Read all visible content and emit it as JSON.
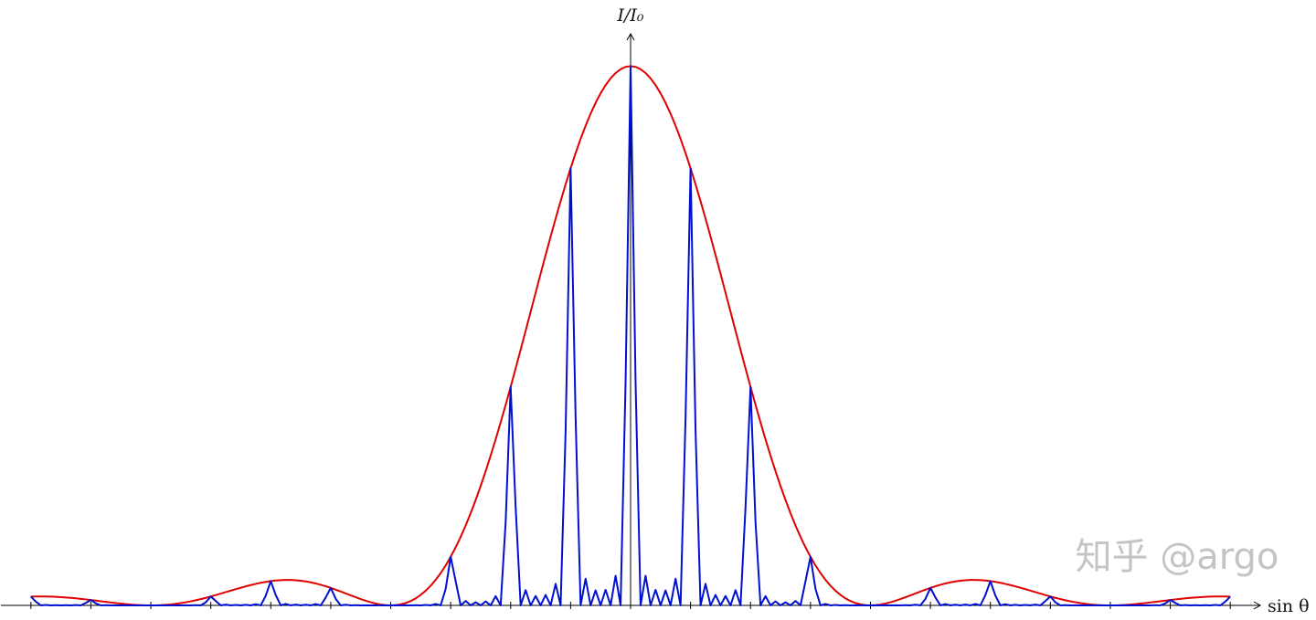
{
  "chart_data": {
    "type": "line",
    "y_label": "I/I₀",
    "x_label": "sin θ",
    "watermark": "知乎 @argo",
    "x": [
      -120,
      -119,
      -118,
      -117,
      -116,
      -115,
      -114,
      -113,
      -112,
      -111,
      -110,
      -109,
      -108,
      -107,
      -106,
      -105,
      -104,
      -103,
      -102,
      -101,
      -100,
      -99,
      -98,
      -97,
      -96,
      -95,
      -94,
      -93,
      -92,
      -91,
      -90,
      -89,
      -88,
      -87,
      -86,
      -85,
      -84,
      -83,
      -82,
      -81,
      -80,
      -79,
      -78,
      -77,
      -76,
      -75,
      -74,
      -73,
      -72,
      -71,
      -70,
      -69,
      -68,
      -67,
      -66,
      -65,
      -64,
      -63,
      -62,
      -61,
      -60,
      -59,
      -58,
      -57,
      -56,
      -55,
      -54,
      -53,
      -52,
      -51,
      -50,
      -49,
      -48,
      -47,
      -46,
      -45,
      -44,
      -43,
      -42,
      -41,
      -40,
      -39,
      -38,
      -37,
      -36,
      -35,
      -34,
      -33,
      -32,
      -31,
      -30,
      -29,
      -28,
      -27,
      -26,
      -25,
      -24,
      -23,
      -22,
      -21,
      -20,
      -19,
      -18,
      -17,
      -16,
      -15,
      -14,
      -13,
      -12,
      -11,
      -10,
      -9,
      -8,
      -7,
      -6,
      -5,
      -4,
      -3,
      -2,
      -1,
      0,
      1,
      2,
      3,
      4,
      5,
      6,
      7,
      8,
      9,
      10,
      11,
      12,
      13,
      14,
      15,
      16,
      17,
      18,
      19,
      20,
      21,
      22,
      23,
      24,
      25,
      26,
      27,
      28,
      29,
      30,
      31,
      32,
      33,
      34,
      35,
      36,
      37,
      38,
      39,
      40,
      41,
      42,
      43,
      44,
      45,
      46,
      47,
      48,
      49,
      50,
      51,
      52,
      53,
      54,
      55,
      56,
      57,
      58,
      59,
      60,
      61,
      62,
      63,
      64,
      65,
      66,
      67,
      68,
      69,
      70,
      71,
      72,
      73,
      74,
      75,
      76,
      77,
      78,
      79,
      80,
      81,
      82,
      83,
      84,
      85,
      86,
      87,
      88,
      89,
      90,
      91,
      92,
      93,
      94,
      95,
      96,
      97,
      98,
      99,
      100,
      101,
      102,
      103,
      104,
      105,
      106,
      107,
      108,
      109,
      110,
      111,
      112,
      113,
      114,
      115,
      116,
      117,
      118,
      119,
      120
    ],
    "series": [
      {
        "color": "#e00000",
        "values": [
          0.0162,
          0.0164,
          0.0165,
          0.0164,
          0.0162,
          0.0158,
          0.0153,
          0.0147,
          0.014,
          0.0131,
          0.0121,
          0.0111,
          0.01,
          0.0089,
          0.0077,
          0.0065,
          0.0054,
          0.0043,
          0.0033,
          0.0024,
          0.0016,
          0.0009,
          0.0004,
          0.0001,
          0,
          0.0001,
          0.0005,
          0.001,
          0.0018,
          0.0029,
          0.0042,
          0.0058,
          0.0075,
          0.0095,
          0.0117,
          0.014,
          0.0165,
          0.0192,
          0.0219,
          0.0246,
          0.0274,
          0.0301,
          0.0327,
          0.0353,
          0.0377,
          0.0399,
          0.0419,
          0.0436,
          0.045,
          0.0461,
          0.0468,
          0.0472,
          0.0471,
          0.0466,
          0.0457,
          0.0444,
          0.0427,
          0.0407,
          0.0382,
          0.0355,
          0.0324,
          0.0292,
          0.0257,
          0.0222,
          0.0186,
          0.0151,
          0.0117,
          0.0086,
          0.0058,
          0.0034,
          0.0016,
          0.0004,
          0,
          0.0005,
          0.0019,
          0.0044,
          0.0081,
          0.013,
          0.0194,
          0.0272,
          0.0365,
          0.0474,
          0.0599,
          0.0741,
          0.0901,
          0.1077,
          0.1271,
          0.1482,
          0.171,
          0.1954,
          0.2214,
          0.2489,
          0.2778,
          0.308,
          0.3394,
          0.3719,
          0.4053,
          0.4394,
          0.4741,
          0.5092,
          0.5445,
          0.5798,
          0.615,
          0.6497,
          0.6839,
          0.7173,
          0.7496,
          0.7808,
          0.8106,
          0.8387,
          0.8651,
          0.8895,
          0.9119,
          0.9319,
          0.9496,
          0.9648,
          0.9773,
          0.9872,
          0.9943,
          0.9986,
          1,
          0.9986,
          0.9943,
          0.9872,
          0.9773,
          0.9648,
          0.9496,
          0.9319,
          0.9119,
          0.8895,
          0.8651,
          0.8387,
          0.8106,
          0.7808,
          0.7496,
          0.7173,
          0.6839,
          0.6497,
          0.615,
          0.5798,
          0.5445,
          0.5092,
          0.4741,
          0.4394,
          0.4053,
          0.3719,
          0.3394,
          0.308,
          0.2778,
          0.2489,
          0.2214,
          0.1954,
          0.171,
          0.1482,
          0.1271,
          0.1077,
          0.0901,
          0.0741,
          0.0599,
          0.0474,
          0.0365,
          0.0272,
          0.0194,
          0.013,
          0.0081,
          0.0044,
          0.0019,
          0.0005,
          0,
          0.0004,
          0.0016,
          0.0034,
          0.0058,
          0.0086,
          0.0117,
          0.0151,
          0.0186,
          0.0222,
          0.0257,
          0.0292,
          0.0324,
          0.0355,
          0.0382,
          0.0407,
          0.0427,
          0.0444,
          0.0457,
          0.0466,
          0.0471,
          0.0472,
          0.0468,
          0.0461,
          0.045,
          0.0436,
          0.0419,
          0.0399,
          0.0377,
          0.0353,
          0.0327,
          0.0301,
          0.0274,
          0.0246,
          0.0219,
          0.0192,
          0.0165,
          0.014,
          0.0117,
          0.0095,
          0.0075,
          0.0058,
          0.0042,
          0.0029,
          0.0018,
          0.001,
          0.0005,
          0.0001,
          0,
          0.0001,
          0.0004,
          0.0009,
          0.0016,
          0.0024,
          0.0033,
          0.0043,
          0.0054,
          0.0065,
          0.0077,
          0.0089,
          0.01,
          0.0111,
          0.0121,
          0.0131,
          0.014,
          0.0147,
          0.0153,
          0.0158,
          0.0162,
          0.0164,
          0.0165,
          0.0164,
          0.0162
        ]
      },
      {
        "color": "#0010d0",
        "values": [
          0.0162,
          0.0068,
          0,
          0.0009,
          0,
          0.0005,
          0,
          0.0004,
          0,
          0.0007,
          0,
          0.0046,
          0.01,
          0.0037,
          0,
          0.0004,
          0,
          0.0001,
          0,
          0.0001,
          0,
          0.0001,
          0,
          0,
          0,
          0,
          0,
          0.0001,
          0,
          0.0001,
          0,
          0.0002,
          0,
          0.0005,
          0,
          0.0058,
          0.0165,
          0.008,
          0,
          0.0014,
          0,
          0.0009,
          0,
          0.0011,
          0,
          0.0022,
          0,
          0.0181,
          0.045,
          0.0191,
          0,
          0.0026,
          0,
          0.0014,
          0,
          0.0013,
          0,
          0.0023,
          0,
          0.0147,
          0.0324,
          0.0121,
          0,
          0.0012,
          0,
          0.0004,
          0,
          0.0003,
          0,
          0.0002,
          0,
          0.0002,
          0,
          0.0002,
          0,
          0.0002,
          0,
          0.0004,
          0,
          0.0008,
          0,
          0.0026,
          0,
          0.0307,
          0.0901,
          0.0447,
          0,
          0.0082,
          0,
          0.0058,
          0,
          0.0074,
          0,
          0.0171,
          0,
          0.1542,
          0.4053,
          0.1822,
          0,
          0.0283,
          0,
          0.0173,
          0,
          0.0194,
          0,
          0.0399,
          0,
          0.3237,
          0.8106,
          0.3477,
          0,
          0.0495,
          0,
          0.0278,
          0,
          0.0288,
          0,
          0.0549,
          0,
          0.414,
          1,
          0.414,
          0,
          0.0549,
          0,
          0.0288,
          0,
          0.0278,
          0,
          0.0495,
          0,
          0.3477,
          0.8106,
          0.3237,
          0,
          0.0399,
          0,
          0.0194,
          0,
          0.0173,
          0,
          0.0283,
          0,
          0.1822,
          0.4053,
          0.1542,
          0,
          0.0171,
          0,
          0.0074,
          0,
          0.0058,
          0,
          0.0082,
          0,
          0.0447,
          0.0901,
          0.0307,
          0,
          0.0026,
          0,
          0.0008,
          0,
          0.0004,
          0,
          0.0002,
          0,
          0.0002,
          0,
          0.0002,
          0,
          0.0002,
          0,
          0.0003,
          0,
          0.0004,
          0,
          0.0012,
          0,
          0.0121,
          0.0324,
          0.0147,
          0,
          0.0023,
          0,
          0.0013,
          0,
          0.0014,
          0,
          0.0026,
          0,
          0.0191,
          0.045,
          0.0181,
          0,
          0.0022,
          0,
          0.0011,
          0,
          0.0009,
          0,
          0.0014,
          0,
          0.008,
          0.0165,
          0.0058,
          0,
          0.0005,
          0,
          0.0002,
          0,
          0.0001,
          0,
          0.0001,
          0,
          0,
          0,
          0,
          0,
          0.0001,
          0,
          0.0001,
          0,
          0.0001,
          0,
          0.0004,
          0,
          0.0037,
          0.01,
          0.0046,
          0,
          0.0007,
          0,
          0.0004,
          0,
          0.0005,
          0,
          0.0009,
          0,
          0.0068,
          0.0162
        ]
      }
    ],
    "xlim": [
      -126,
      126
    ],
    "ylim": [
      0,
      1.06
    ],
    "xticks": [
      -120,
      -108,
      -96,
      -84,
      -72,
      -60,
      -48,
      -36,
      -24,
      -12,
      0,
      12,
      24,
      36,
      48,
      60,
      72,
      84,
      96,
      108,
      120
    ]
  }
}
